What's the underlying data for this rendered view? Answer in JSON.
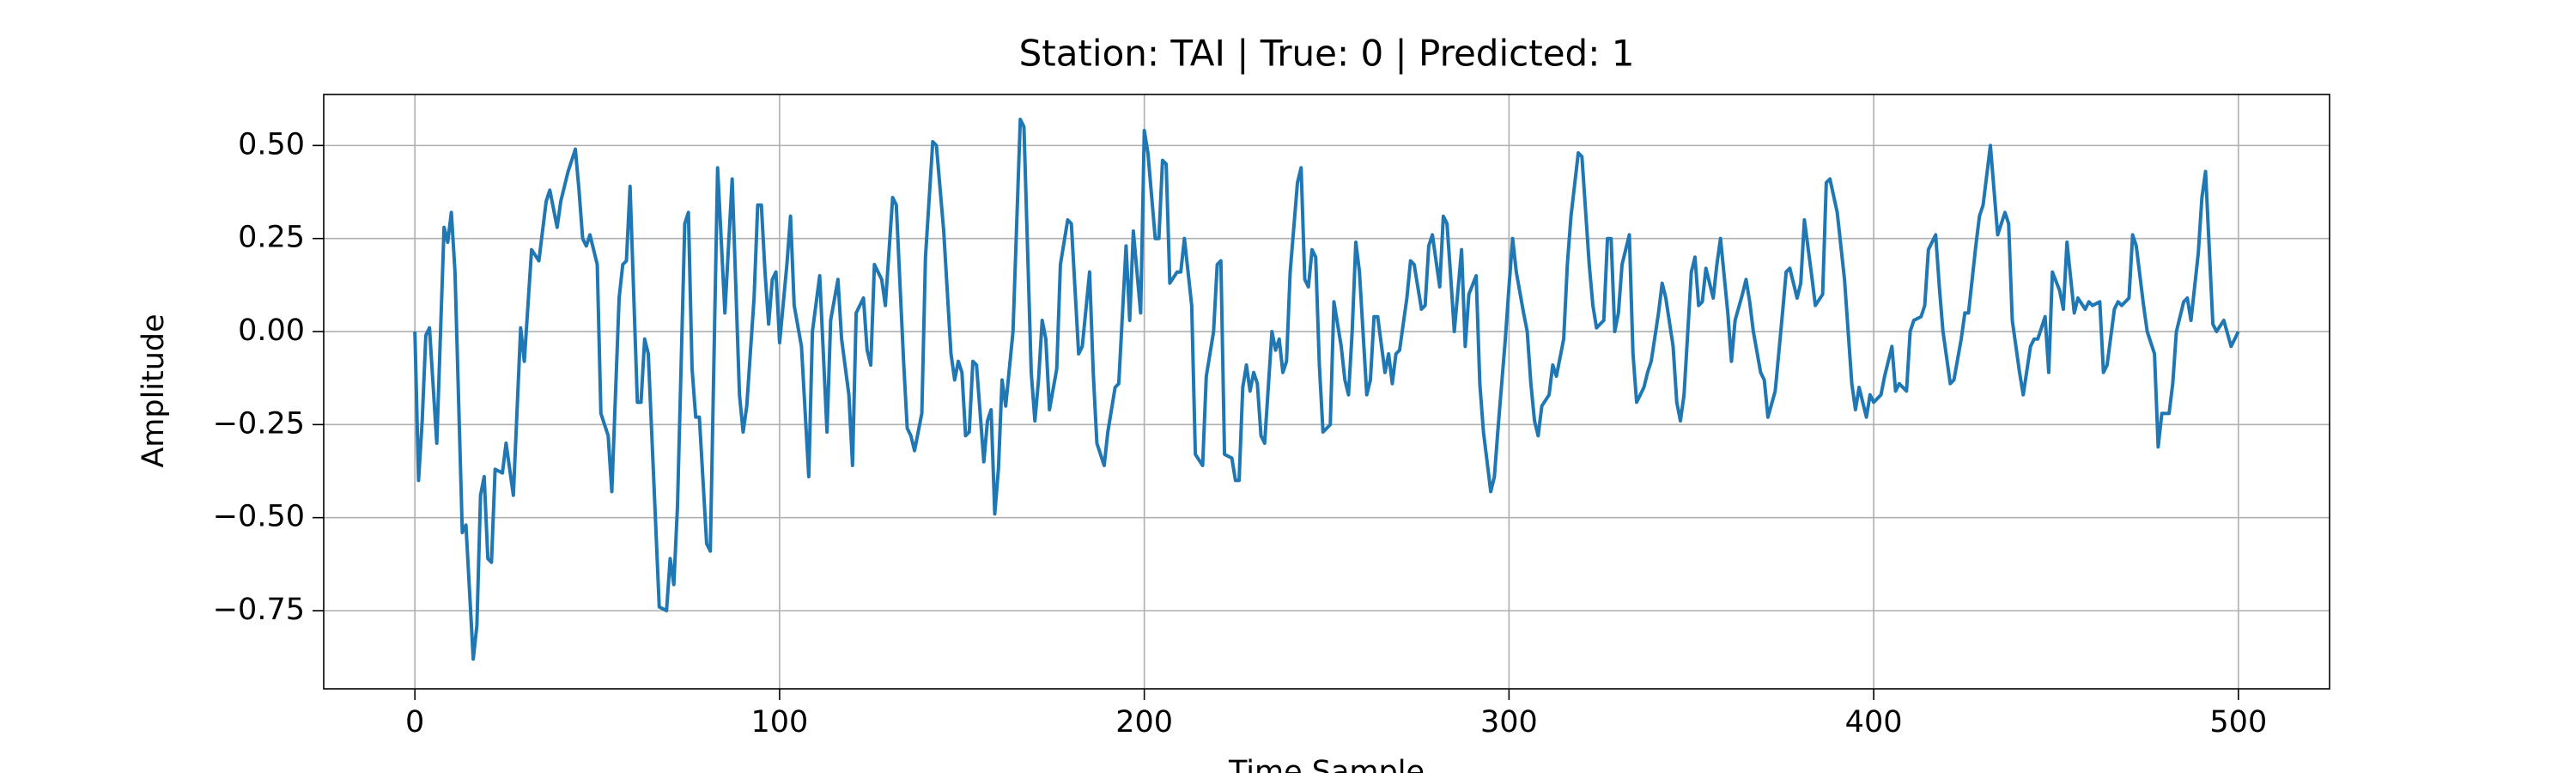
{
  "chart_data": {
    "type": "line",
    "title": "Station: TAI | True: 0 | Predicted: 1",
    "x_label": "Time Sample",
    "y_label": "Amplitude",
    "color": "#1f77b4",
    "grid": true,
    "xlim": [
      -25,
      525
    ],
    "ylim": [
      -0.96,
      0.637
    ],
    "xticks": [
      0,
      100,
      200,
      300,
      400,
      500
    ],
    "yticks": [
      {
        "value": -0.75,
        "label": "−0.75"
      },
      {
        "value": -0.5,
        "label": "−0.50"
      },
      {
        "value": -0.25,
        "label": "−0.25"
      },
      {
        "value": 0,
        "label": "0.00"
      },
      {
        "value": 0.25,
        "label": "0.25"
      },
      {
        "value": 0.5,
        "label": "0.50"
      }
    ],
    "x": [
      0,
      1,
      2,
      3,
      4,
      6,
      8,
      9,
      10,
      11,
      13,
      14,
      16,
      17,
      18,
      19,
      20,
      21,
      22,
      24,
      25,
      27,
      29,
      30,
      32,
      34,
      36,
      37,
      39,
      40,
      42,
      44,
      45,
      46,
      47,
      48,
      50,
      51,
      53,
      54,
      56,
      57,
      58,
      59,
      61,
      62,
      63,
      64,
      67,
      69,
      70,
      71,
      72,
      74,
      75,
      76,
      77,
      78,
      80,
      81,
      83,
      85,
      87,
      89,
      90,
      91,
      93,
      94,
      95,
      96,
      97,
      98,
      99,
      100,
      102,
      103,
      104,
      106,
      108,
      109,
      111,
      113,
      114,
      116,
      117,
      119,
      120,
      121,
      123,
      124,
      125,
      126,
      128,
      129,
      131,
      132,
      134,
      135,
      136,
      137,
      139,
      140,
      142,
      143,
      145,
      147,
      148,
      149,
      150,
      151,
      152,
      153,
      154,
      156,
      157,
      158,
      159,
      160,
      161,
      162,
      164,
      166,
      167,
      169,
      170,
      171,
      172,
      173,
      174,
      176,
      177,
      179,
      180,
      182,
      183,
      185,
      186,
      187,
      189,
      190,
      192,
      193,
      195,
      196,
      197,
      199,
      200,
      201,
      203,
      204,
      205,
      206,
      207,
      209,
      210,
      211,
      213,
      214,
      216,
      217,
      219,
      220,
      221,
      222,
      224,
      225,
      226,
      227,
      228,
      229,
      230,
      231,
      232,
      233,
      235,
      236,
      237,
      238,
      239,
      240,
      242,
      243,
      244,
      245,
      246,
      247,
      248,
      249,
      251,
      252,
      254,
      255,
      256,
      257,
      258,
      259,
      261,
      262,
      263,
      264,
      266,
      267,
      268,
      269,
      270,
      272,
      273,
      274,
      276,
      277,
      278,
      279,
      281,
      282,
      283,
      284,
      285,
      287,
      288,
      289,
      291,
      292,
      293,
      295,
      296,
      297,
      299,
      300,
      301,
      302,
      304,
      305,
      306,
      307,
      308,
      309,
      311,
      312,
      313,
      315,
      316,
      317,
      319,
      320,
      322,
      323,
      324,
      326,
      327,
      328,
      329,
      330,
      331,
      333,
      334,
      335,
      337,
      338,
      339,
      341,
      342,
      343,
      345,
      346,
      347,
      348,
      350,
      351,
      352,
      353,
      354,
      356,
      357,
      358,
      360,
      361,
      362,
      364,
      365,
      366,
      367,
      369,
      370,
      371,
      373,
      375,
      376,
      377,
      379,
      380,
      381,
      383,
      384,
      386,
      387,
      388,
      390,
      391,
      392,
      394,
      395,
      396,
      398,
      399,
      400,
      402,
      403,
      405,
      406,
      407,
      409,
      410,
      411,
      413,
      414,
      415,
      417,
      418,
      419,
      421,
      422,
      424,
      425,
      426,
      428,
      429,
      430,
      432,
      433,
      434,
      436,
      437,
      438,
      440,
      441,
      443,
      444,
      445,
      447,
      448,
      449,
      451,
      452,
      453,
      455,
      456,
      458,
      459,
      460,
      462,
      463,
      464,
      466,
      467,
      468,
      470,
      471,
      472,
      474,
      475,
      477,
      478,
      479,
      481,
      482,
      483,
      485,
      486,
      487,
      489,
      490,
      491,
      493,
      494,
      496,
      498,
      500
    ],
    "values": [
      0.0,
      -0.4,
      -0.24,
      -0.01,
      0.01,
      -0.3,
      0.28,
      0.24,
      0.32,
      0.16,
      -0.54,
      -0.52,
      -0.88,
      -0.79,
      -0.44,
      -0.39,
      -0.61,
      -0.62,
      -0.37,
      -0.38,
      -0.3,
      -0.44,
      0.01,
      -0.08,
      0.22,
      0.19,
      0.35,
      0.38,
      0.28,
      0.35,
      0.43,
      0.49,
      0.38,
      0.25,
      0.23,
      0.26,
      0.18,
      -0.22,
      -0.28,
      -0.43,
      0.09,
      0.18,
      0.19,
      0.39,
      -0.19,
      -0.19,
      -0.02,
      -0.06,
      -0.74,
      -0.75,
      -0.61,
      -0.68,
      -0.47,
      0.29,
      0.32,
      -0.1,
      -0.23,
      -0.23,
      -0.57,
      -0.59,
      0.44,
      0.05,
      0.41,
      -0.17,
      -0.27,
      -0.2,
      0.09,
      0.34,
      0.34,
      0.16,
      0.02,
      0.14,
      0.16,
      -0.03,
      0.18,
      0.31,
      0.07,
      -0.04,
      -0.39,
      0.0,
      0.15,
      -0.27,
      0.03,
      0.14,
      -0.02,
      -0.17,
      -0.36,
      0.05,
      0.09,
      -0.05,
      -0.09,
      0.18,
      0.14,
      0.07,
      0.36,
      0.34,
      -0.08,
      -0.26,
      -0.28,
      -0.32,
      -0.22,
      0.2,
      0.51,
      0.5,
      0.27,
      -0.06,
      -0.13,
      -0.08,
      -0.11,
      -0.28,
      -0.27,
      -0.08,
      -0.09,
      -0.35,
      -0.24,
      -0.21,
      -0.49,
      -0.37,
      -0.13,
      -0.2,
      0.0,
      0.57,
      0.55,
      -0.11,
      -0.24,
      -0.13,
      0.03,
      -0.02,
      -0.21,
      -0.1,
      0.18,
      0.3,
      0.29,
      -0.06,
      -0.04,
      0.16,
      -0.11,
      -0.3,
      -0.36,
      -0.27,
      -0.15,
      -0.14,
      0.23,
      0.03,
      0.27,
      0.05,
      0.54,
      0.48,
      0.25,
      0.25,
      0.46,
      0.45,
      0.13,
      0.16,
      0.16,
      0.25,
      0.07,
      -0.33,
      -0.36,
      -0.12,
      0.0,
      0.18,
      0.19,
      -0.33,
      -0.34,
      -0.4,
      -0.4,
      -0.15,
      -0.09,
      -0.16,
      -0.11,
      -0.14,
      -0.28,
      -0.3,
      0.0,
      -0.05,
      -0.02,
      -0.11,
      -0.08,
      0.16,
      0.4,
      0.44,
      0.14,
      0.12,
      0.22,
      0.2,
      -0.09,
      -0.27,
      -0.25,
      0.08,
      -0.04,
      -0.13,
      -0.17,
      0.0,
      0.24,
      0.16,
      -0.17,
      -0.13,
      0.04,
      0.04,
      -0.11,
      -0.06,
      -0.14,
      -0.06,
      -0.05,
      0.09,
      0.19,
      0.18,
      0.06,
      0.07,
      0.23,
      0.26,
      0.12,
      0.31,
      0.29,
      0.15,
      0.0,
      0.22,
      -0.04,
      0.1,
      0.15,
      -0.14,
      -0.27,
      -0.43,
      -0.39,
      -0.26,
      -0.02,
      0.12,
      0.25,
      0.16,
      0.05,
      0.0,
      -0.14,
      -0.24,
      -0.28,
      -0.2,
      -0.17,
      -0.09,
      -0.12,
      -0.02,
      0.18,
      0.31,
      0.48,
      0.47,
      0.18,
      0.07,
      0.01,
      0.03,
      0.25,
      0.25,
      0.0,
      0.05,
      0.18,
      0.26,
      -0.06,
      -0.19,
      -0.15,
      -0.11,
      -0.08,
      0.05,
      0.13,
      0.09,
      -0.04,
      -0.19,
      -0.24,
      -0.17,
      0.16,
      0.2,
      0.07,
      0.08,
      0.17,
      0.09,
      0.18,
      0.25,
      0.05,
      -0.08,
      0.03,
      0.1,
      0.14,
      0.08,
      0.0,
      -0.11,
      -0.13,
      -0.23,
      -0.16,
      0.05,
      0.16,
      0.17,
      0.09,
      0.13,
      0.3,
      0.15,
      0.07,
      0.1,
      0.4,
      0.41,
      0.32,
      0.23,
      0.14,
      -0.14,
      -0.21,
      -0.15,
      -0.23,
      -0.17,
      -0.19,
      -0.17,
      -0.12,
      -0.04,
      -0.16,
      -0.14,
      -0.16,
      0.0,
      0.03,
      0.04,
      0.07,
      0.22,
      0.26,
      0.12,
      0.0,
      -0.14,
      -0.13,
      -0.02,
      0.05,
      0.05,
      0.23,
      0.31,
      0.34,
      0.5,
      0.38,
      0.26,
      0.32,
      0.29,
      0.03,
      -0.11,
      -0.17,
      -0.04,
      -0.02,
      -0.02,
      0.04,
      -0.11,
      0.16,
      0.11,
      0.06,
      0.24,
      0.05,
      0.09,
      0.06,
      0.08,
      0.07,
      0.08,
      -0.11,
      -0.09,
      0.06,
      0.08,
      0.07,
      0.09,
      0.26,
      0.23,
      0.07,
      0.0,
      -0.06,
      -0.31,
      -0.22,
      -0.22,
      -0.14,
      0.0,
      0.08,
      0.09,
      0.03,
      0.21,
      0.36,
      0.43,
      0.02,
      0.0,
      0.03,
      -0.04,
      0.0
    ]
  }
}
